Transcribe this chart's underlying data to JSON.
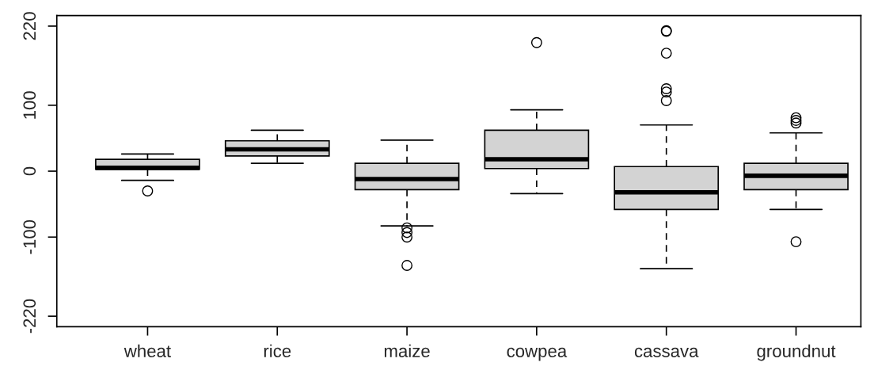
{
  "chart_data": {
    "type": "box",
    "categories": [
      "wheat",
      "rice",
      "maize",
      "cowpea",
      "cassava",
      "groundnut"
    ],
    "color": "#d3d3d3",
    "boxes": [
      {
        "low": -14,
        "q1": 3,
        "median": 5,
        "q3": 18,
        "high": 26,
        "outliers": [
          -30
        ]
      },
      {
        "low": 12,
        "q1": 23,
        "median": 33,
        "q3": 46,
        "high": 62
      },
      {
        "low": -83,
        "q1": -28,
        "median": -12,
        "q3": 12,
        "high": 47,
        "outliers": [
          -86,
          -93,
          -100,
          -143
        ]
      },
      {
        "low": -34,
        "q1": 4,
        "median": 18,
        "q3": 62,
        "high": 93,
        "outliers": [
          195
        ]
      },
      {
        "low": -148,
        "q1": -58,
        "median": -32,
        "q3": 7,
        "high": 70,
        "outliers": [
          107,
          120,
          125,
          179,
          212,
          213
        ]
      },
      {
        "low": -58,
        "q1": -28,
        "median": -7,
        "q3": 12,
        "high": 58,
        "outliers": [
          -107,
          73,
          77,
          81
        ]
      }
    ],
    "ylim": [
      -236,
      236
    ],
    "yticks": [
      -220,
      -100,
      0,
      100,
      220
    ],
    "grid": false
  }
}
